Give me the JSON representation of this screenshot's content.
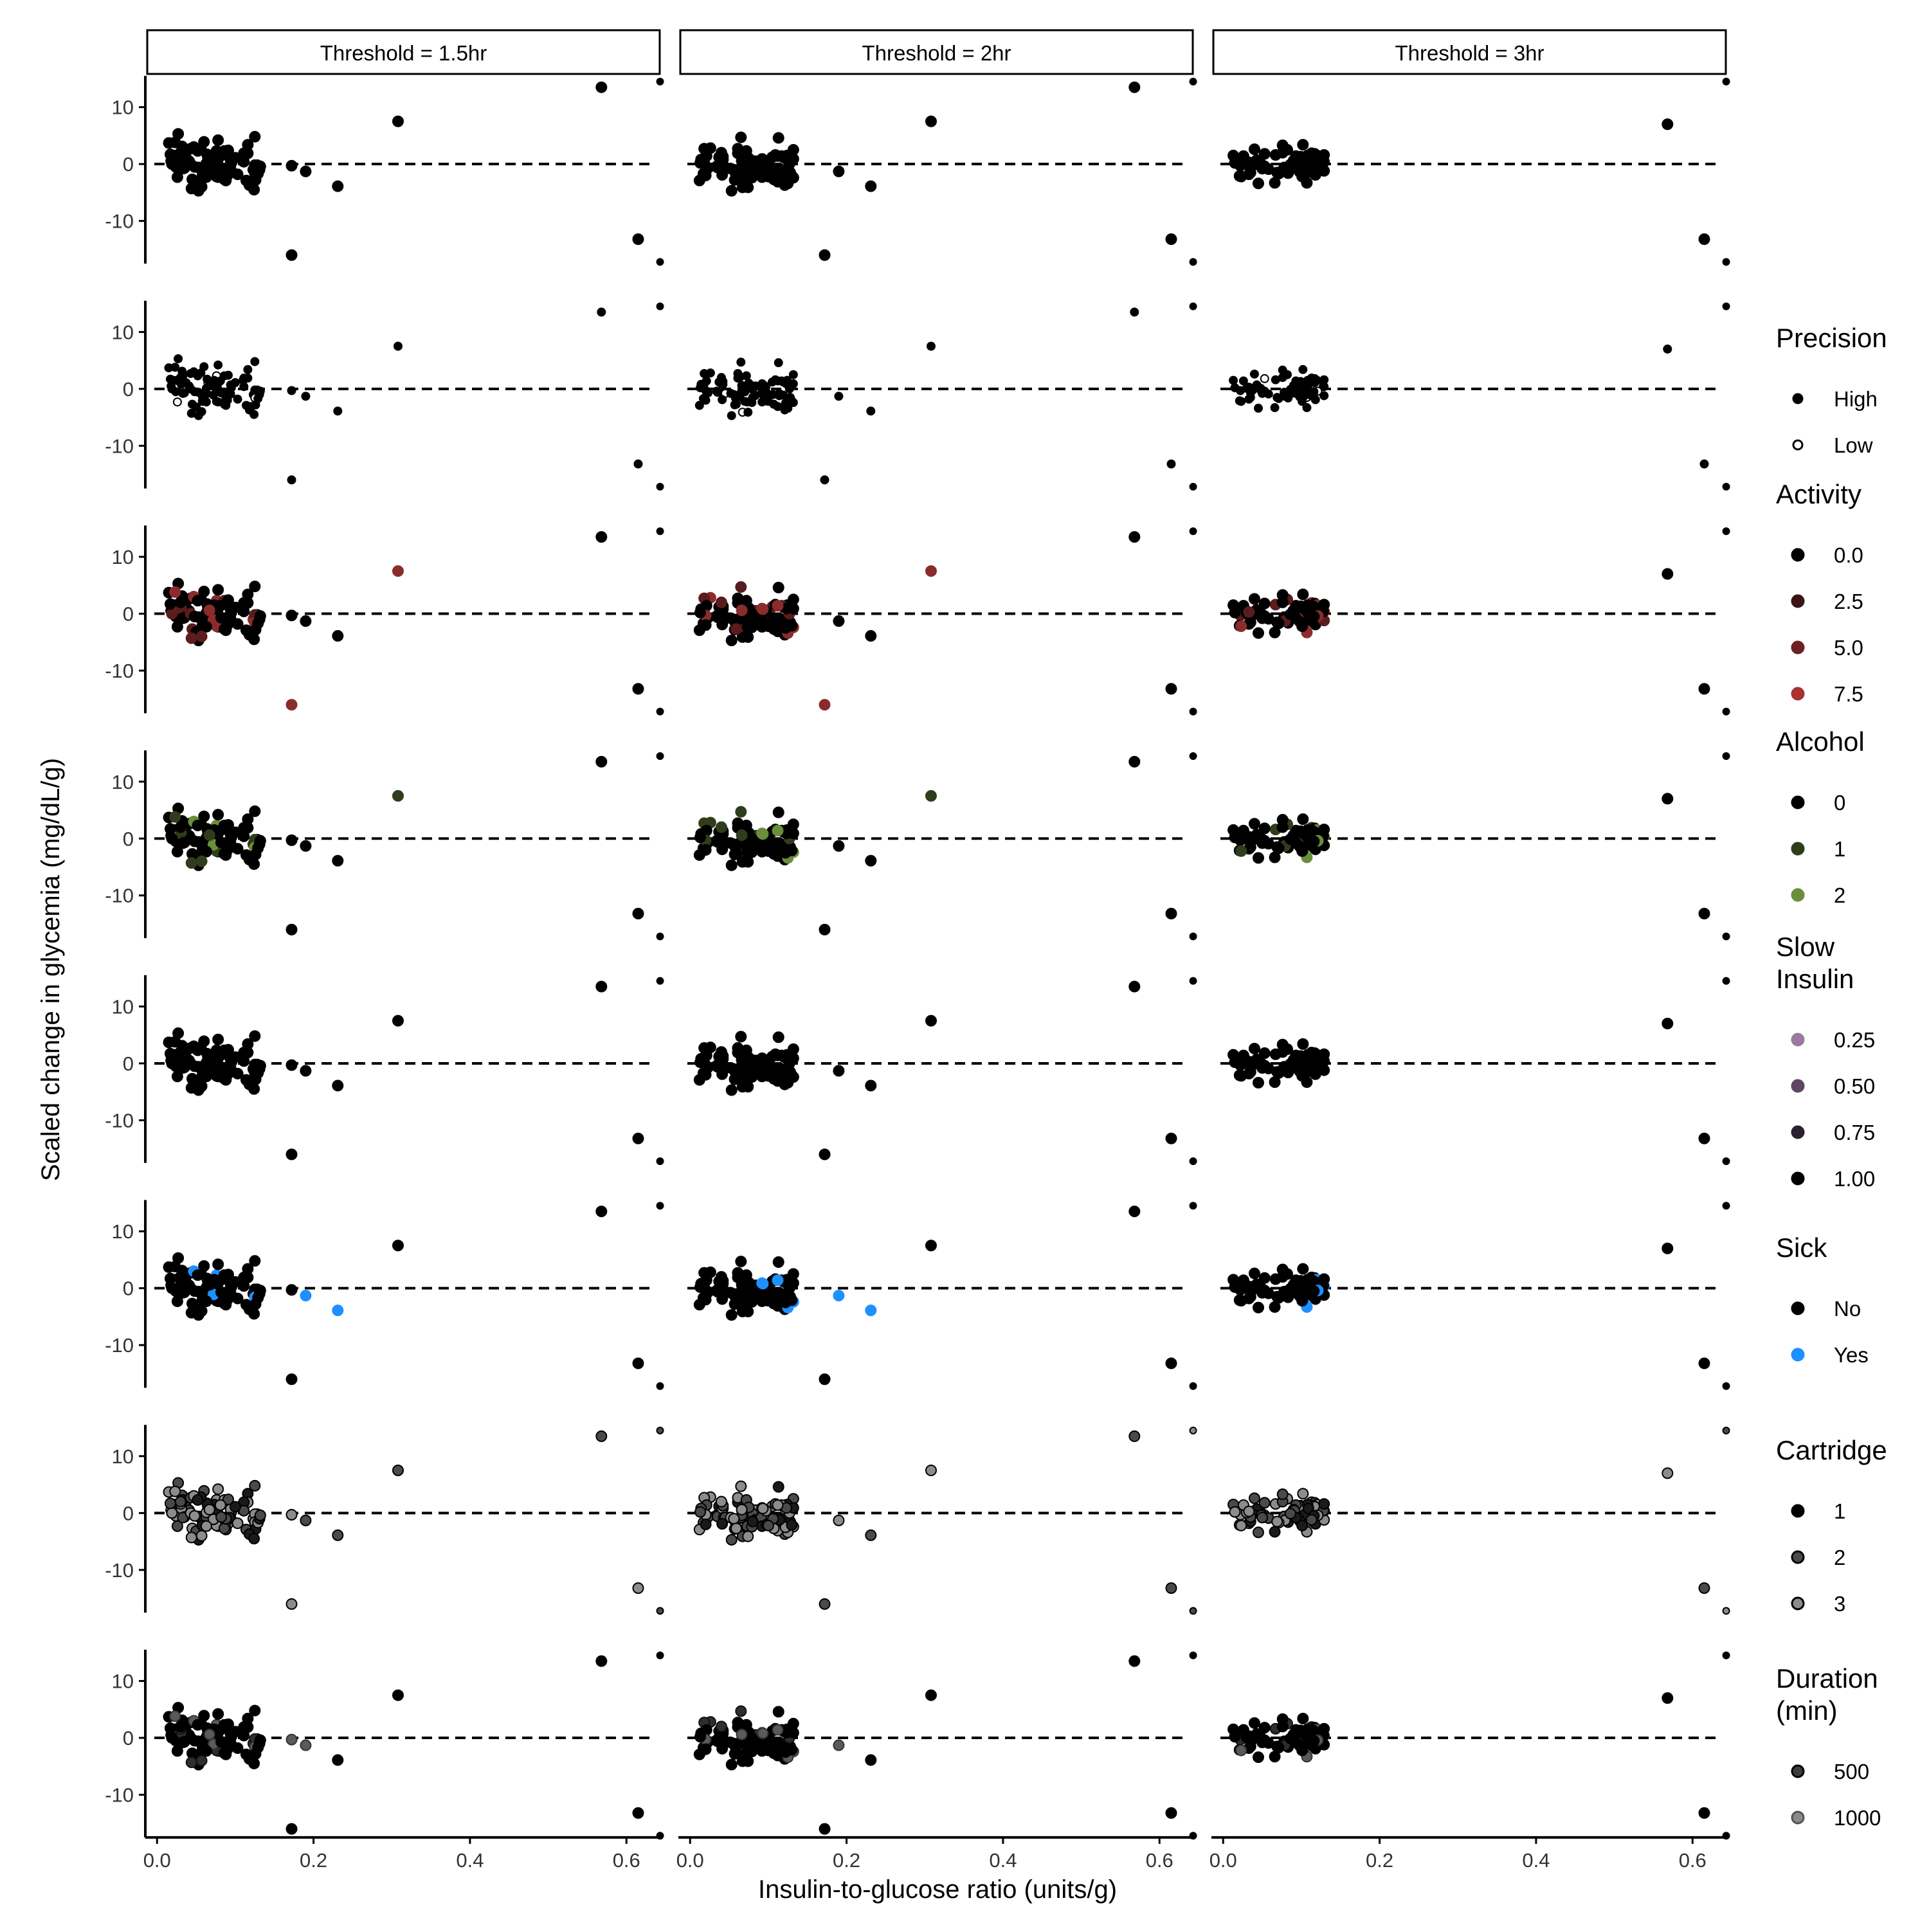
{
  "chart_data": {
    "type": "scatter",
    "layout": "faceted grid: 8 rows x 3 columns",
    "xlabel": "Insulin-to-glucose ratio (units/g)",
    "ylabel": "Scaled change in glycemia (mg/dL/g)",
    "xlim": [
      -0.015,
      0.645
    ],
    "ylim": [
      -17.5,
      15.5
    ],
    "x_ticks": [
      0.0,
      0.2,
      0.4,
      0.6
    ],
    "x_tick_labels": [
      "0.0",
      "0.2",
      "0.4",
      "0.6"
    ],
    "y_ticks": [
      -10,
      0,
      10
    ],
    "y_tick_labels": [
      "-10",
      "0",
      "10"
    ],
    "reference_line": {
      "y": 0,
      "style": "dashed",
      "color": "#000000"
    },
    "grid": false,
    "legend_position": "right",
    "facets": [
      {
        "label": "Threshold = 1.5hr"
      },
      {
        "label": "Threshold = 2hr"
      },
      {
        "label": "Threshold = 3hr"
      }
    ],
    "cluster_note": "dense cluster of approximately 80 points between x 0.01 and 0.13, y between -6 and 6, in every panel",
    "outliers": {
      "threshold_1_5hr": [
        {
          "x": 0.172,
          "y": -0.3
        },
        {
          "x": 0.19,
          "y": -1.3
        },
        {
          "x": 0.231,
          "y": -3.9
        },
        {
          "x": 0.172,
          "y": -16.0
        },
        {
          "x": 0.308,
          "y": 7.5
        },
        {
          "x": 0.568,
          "y": 13.5
        },
        {
          "x": 0.615,
          "y": -13.2
        },
        {
          "x": 0.643,
          "y": 14.5
        },
        {
          "x": 0.643,
          "y": -17.2
        }
      ],
      "threshold_2hr": [
        {
          "x": 0.19,
          "y": -1.3
        },
        {
          "x": 0.231,
          "y": -3.9
        },
        {
          "x": 0.172,
          "y": -16.0
        },
        {
          "x": 0.308,
          "y": 7.5
        },
        {
          "x": 0.568,
          "y": 13.5
        },
        {
          "x": 0.615,
          "y": -13.2
        },
        {
          "x": 0.643,
          "y": 14.5
        },
        {
          "x": 0.643,
          "y": -17.2
        }
      ],
      "threshold_3hr": [
        {
          "x": 0.568,
          "y": 7.0
        },
        {
          "x": 0.615,
          "y": -13.2
        },
        {
          "x": 0.643,
          "y": 14.5
        },
        {
          "x": 0.643,
          "y": -17.2
        }
      ]
    },
    "rows": [
      {
        "variable": "Precision",
        "coloring": "solid black points"
      },
      {
        "variable": "Precision",
        "coloring": "small points; High = filled, Low = open"
      },
      {
        "variable": "Activity",
        "coloring": "black to dark red gradient",
        "highlighted_outlier_indices": {
          "threshold_1_5hr": [
            3,
            4
          ],
          "threshold_2hr": [
            2,
            3
          ],
          "threshold_3hr": []
        }
      },
      {
        "variable": "Alcohol",
        "coloring": "black to green",
        "highlighted_outlier_indices": {
          "threshold_1_5hr": [
            4
          ],
          "threshold_2hr": [
            3
          ],
          "threshold_3hr": []
        }
      },
      {
        "variable": "Slow Insulin",
        "coloring": "all black (1.00)"
      },
      {
        "variable": "Sick",
        "coloring": "No = black, Yes = blue",
        "highlighted_outlier_indices": {
          "threshold_1_5hr": [
            1,
            2
          ],
          "threshold_2hr": [
            0,
            1
          ],
          "threshold_3hr": []
        }
      },
      {
        "variable": "Cartridge",
        "coloring": "grey shades with black outline"
      },
      {
        "variable": "Duration (min)",
        "coloring": "black to grey gradient",
        "highlighted_outlier_indices": {
          "threshold_1_5hr": [
            0,
            1
          ],
          "threshold_2hr": [
            0
          ],
          "threshold_3hr": []
        }
      }
    ],
    "legends": [
      {
        "title_lines": [
          "Precision"
        ],
        "entries": [
          {
            "label": "High",
            "fill": "#000000",
            "stroke": "#000000",
            "size": "small"
          },
          {
            "label": "Low",
            "fill": "#ffffff",
            "stroke": "#000000",
            "size": "small"
          }
        ]
      },
      {
        "title_lines": [
          "Activity"
        ],
        "entries": [
          {
            "label": "0.0",
            "fill": "#000000",
            "stroke": "#000000"
          },
          {
            "label": "2.5",
            "fill": "#3a1414",
            "stroke": "#3a1414"
          },
          {
            "label": "5.0",
            "fill": "#6e2020",
            "stroke": "#6e2020"
          },
          {
            "label": "7.5",
            "fill": "#a83232",
            "stroke": "#a83232"
          }
        ]
      },
      {
        "title_lines": [
          "Alcohol"
        ],
        "entries": [
          {
            "label": "0",
            "fill": "#000000",
            "stroke": "#000000"
          },
          {
            "label": "1",
            "fill": "#2f3d1c",
            "stroke": "#2f3d1c"
          },
          {
            "label": "2",
            "fill": "#6b8e3a",
            "stroke": "#6b8e3a"
          }
        ]
      },
      {
        "title_lines": [
          "Slow",
          "Insulin"
        ],
        "entries": [
          {
            "label": "0.25",
            "fill": "#9b79a0",
            "stroke": "#9b79a0"
          },
          {
            "label": "0.50",
            "fill": "#5e4763",
            "stroke": "#5e4763"
          },
          {
            "label": "0.75",
            "fill": "#2c2130",
            "stroke": "#2c2130"
          },
          {
            "label": "1.00",
            "fill": "#000000",
            "stroke": "#000000"
          }
        ]
      },
      {
        "title_lines": [
          "Sick"
        ],
        "entries": [
          {
            "label": "No",
            "fill": "#000000",
            "stroke": "#000000"
          },
          {
            "label": "Yes",
            "fill": "#1e90ff",
            "stroke": "#1e90ff"
          }
        ]
      },
      {
        "title_lines": [
          "Cartridge"
        ],
        "entries": [
          {
            "label": "1",
            "fill": "#000000",
            "stroke": "#000000"
          },
          {
            "label": "2",
            "fill": "#4a4a4a",
            "stroke": "#000000"
          },
          {
            "label": "3",
            "fill": "#8c8c8c",
            "stroke": "#000000"
          }
        ]
      },
      {
        "title_lines": [
          "Duration",
          "(min)"
        ],
        "entries": [
          {
            "label": "500",
            "fill": "#3c3c3c",
            "stroke": "#000000"
          },
          {
            "label": "1000",
            "fill": "#8a8a8a",
            "stroke": "#555555"
          }
        ]
      }
    ],
    "colors": {
      "point": "#000000",
      "activity_high": "#8b2c2c",
      "alcohol_high": "#6b8e3a",
      "sick_yes": "#1e90ff",
      "cartridge_grey": "#8c8c8c",
      "duration_grey": "#5a5a5a"
    }
  }
}
